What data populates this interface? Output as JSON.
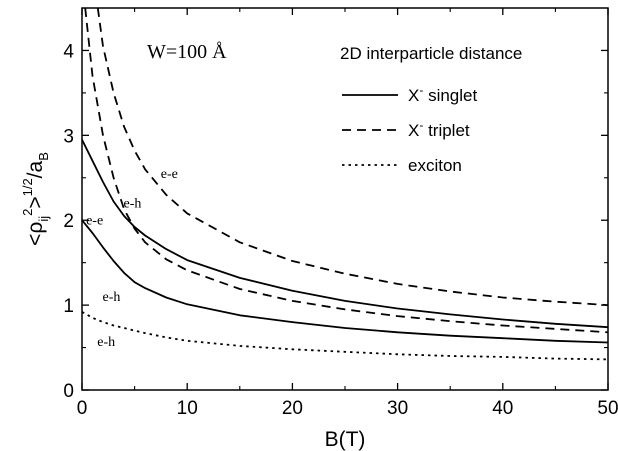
{
  "chart_data": {
    "type": "line",
    "annotation_main": "W=100 Å",
    "xlabel": "B(T)",
    "ylabel": {
      "pre": "<",
      "rho": "ρ",
      "sub": "ij",
      "sup2": "2",
      "post": ">",
      "sup_half": "1/2",
      "div": "/a",
      "sub_b": "B"
    },
    "xlim": [
      0,
      50
    ],
    "ylim": [
      0,
      4.5
    ],
    "xticks": [
      0,
      10,
      20,
      30,
      40,
      50
    ],
    "yticks": [
      0,
      1,
      2,
      3,
      4
    ],
    "grid": false,
    "legend": {
      "title": "2D interparticle distance",
      "placement": "top-right",
      "entries": [
        {
          "main": "X",
          "sup": "-",
          "rest": " singlet",
          "style": "solid"
        },
        {
          "main": "X",
          "sup": "-",
          "rest": " triplet",
          "style": "dashed"
        },
        {
          "main": "exciton",
          "sup": "",
          "rest": "",
          "style": "dotted"
        }
      ]
    },
    "series": [
      {
        "style": "solid",
        "label": "e-e",
        "x": [
          0,
          1,
          2,
          3,
          4,
          5,
          6,
          8,
          10,
          15,
          20,
          25,
          30,
          35,
          40,
          45,
          50
        ],
        "y": [
          2.95,
          2.7,
          2.45,
          2.22,
          2.05,
          1.92,
          1.82,
          1.66,
          1.53,
          1.32,
          1.17,
          1.05,
          0.96,
          0.89,
          0.83,
          0.78,
          0.74
        ]
      },
      {
        "style": "solid",
        "label": "e-h",
        "x": [
          0,
          1,
          2,
          3,
          4,
          5,
          6,
          8,
          10,
          15,
          20,
          25,
          30,
          35,
          40,
          45,
          50
        ],
        "y": [
          2.0,
          1.85,
          1.68,
          1.52,
          1.38,
          1.27,
          1.2,
          1.09,
          1.01,
          0.88,
          0.8,
          0.73,
          0.68,
          0.64,
          0.61,
          0.58,
          0.56
        ]
      },
      {
        "style": "dashed",
        "label": "e-e",
        "x": [
          1.5,
          2,
          3,
          4,
          5,
          6,
          8,
          10,
          15,
          20,
          25,
          30,
          35,
          40,
          45,
          50
        ],
        "y": [
          4.5,
          4.05,
          3.5,
          3.1,
          2.82,
          2.6,
          2.3,
          2.08,
          1.74,
          1.52,
          1.37,
          1.25,
          1.16,
          1.09,
          1.04,
          1.0
        ]
      },
      {
        "style": "dashed",
        "label": "e-h",
        "x": [
          0.3,
          1,
          2,
          3,
          4,
          5,
          6,
          8,
          10,
          15,
          20,
          25,
          30,
          35,
          40,
          45,
          50
        ],
        "y": [
          4.5,
          3.7,
          3.0,
          2.5,
          2.13,
          1.9,
          1.74,
          1.54,
          1.41,
          1.19,
          1.05,
          0.95,
          0.87,
          0.81,
          0.76,
          0.72,
          0.68
        ]
      },
      {
        "style": "dotted",
        "label": "e-h",
        "x": [
          0,
          1,
          2,
          3,
          4,
          5,
          6,
          8,
          10,
          15,
          20,
          25,
          30,
          35,
          40,
          45,
          50
        ],
        "y": [
          0.92,
          0.85,
          0.8,
          0.76,
          0.73,
          0.7,
          0.67,
          0.62,
          0.58,
          0.52,
          0.48,
          0.45,
          0.42,
          0.4,
          0.39,
          0.37,
          0.36
        ]
      }
    ],
    "curve_labels": [
      {
        "text": "e-e",
        "x": 8.3,
        "y": 2.5
      },
      {
        "text": "e-h",
        "x": 4.8,
        "y": 2.15
      },
      {
        "text": "e-e",
        "x": 1.2,
        "y": 1.95
      },
      {
        "text": "e-h",
        "x": 2.8,
        "y": 1.05
      },
      {
        "text": "e-h",
        "x": 2.3,
        "y": 0.52
      }
    ]
  }
}
